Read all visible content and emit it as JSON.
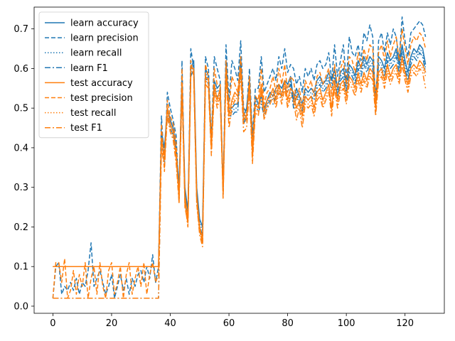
{
  "chart_data": {
    "type": "line",
    "title": "",
    "xlabel": "",
    "ylabel": "",
    "xlim": [
      -6.4,
      133.4
    ],
    "ylim": [
      -0.018,
      0.755
    ],
    "xticks": [
      0,
      20,
      40,
      60,
      80,
      100,
      120
    ],
    "yticks": [
      0.0,
      0.1,
      0.2,
      0.3,
      0.4,
      0.5,
      0.6,
      0.7
    ],
    "grid": false,
    "legend_position": "top-left",
    "colors": {
      "learn": "#1f77b4",
      "test": "#ff7f0e"
    },
    "x": [
      0,
      1,
      2,
      3,
      4,
      5,
      6,
      7,
      8,
      9,
      10,
      11,
      12,
      13,
      14,
      15,
      16,
      17,
      18,
      19,
      20,
      21,
      22,
      23,
      24,
      25,
      26,
      27,
      28,
      29,
      30,
      31,
      32,
      33,
      34,
      35,
      36,
      37,
      38,
      39,
      40,
      41,
      42,
      43,
      44,
      45,
      46,
      47,
      48,
      49,
      50,
      51,
      52,
      53,
      54,
      55,
      56,
      57,
      58,
      59,
      60,
      61,
      62,
      63,
      64,
      65,
      66,
      67,
      68,
      69,
      70,
      71,
      72,
      73,
      74,
      75,
      76,
      77,
      78,
      79,
      80,
      81,
      82,
      83,
      84,
      85,
      86,
      87,
      88,
      89,
      90,
      91,
      92,
      93,
      94,
      95,
      96,
      97,
      98,
      99,
      100,
      101,
      102,
      103,
      104,
      105,
      106,
      107,
      108,
      109,
      110,
      111,
      112,
      113,
      114,
      115,
      116,
      117,
      118,
      119,
      120,
      121,
      122,
      123,
      124,
      125,
      126,
      127
    ],
    "series": [
      {
        "name": "learn accuracy",
        "color": "#1f77b4",
        "dash": "solid",
        "values": [
          0.1,
          0.1,
          0.1,
          0.1,
          0.1,
          0.1,
          0.1,
          0.1,
          0.1,
          0.1,
          0.1,
          0.1,
          0.1,
          0.1,
          0.1,
          0.1,
          0.1,
          0.1,
          0.1,
          0.1,
          0.1,
          0.1,
          0.1,
          0.1,
          0.1,
          0.1,
          0.1,
          0.1,
          0.1,
          0.1,
          0.1,
          0.1,
          0.1,
          0.1,
          0.1,
          0.1,
          0.1,
          0.44,
          0.4,
          0.5,
          0.47,
          0.45,
          0.4,
          0.3,
          0.58,
          0.3,
          0.24,
          0.6,
          0.62,
          0.3,
          0.22,
          0.2,
          0.6,
          0.58,
          0.42,
          0.57,
          0.55,
          0.56,
          0.3,
          0.62,
          0.5,
          0.5,
          0.51,
          0.51,
          0.63,
          0.48,
          0.5,
          0.57,
          0.42,
          0.53,
          0.51,
          0.53,
          0.5,
          0.52,
          0.54,
          0.53,
          0.55,
          0.56,
          0.55,
          0.57,
          0.56,
          0.58,
          0.52,
          0.55,
          0.53,
          0.51,
          0.55,
          0.54,
          0.55,
          0.54,
          0.57,
          0.58,
          0.56,
          0.57,
          0.59,
          0.57,
          0.6,
          0.55,
          0.59,
          0.6,
          0.56,
          0.61,
          0.6,
          0.58,
          0.62,
          0.6,
          0.63,
          0.61,
          0.63,
          0.62,
          0.53,
          0.63,
          0.62,
          0.6,
          0.64,
          0.62,
          0.63,
          0.65,
          0.61,
          0.66,
          0.62,
          0.59,
          0.63,
          0.65,
          0.64,
          0.66,
          0.65,
          0.61
        ]
      },
      {
        "name": "learn precision",
        "color": "#1f77b4",
        "dash": "dashed",
        "values": [
          0.02,
          0.1,
          0.11,
          0.03,
          0.05,
          0.04,
          0.06,
          0.04,
          0.07,
          0.03,
          0.06,
          0.05,
          0.09,
          0.16,
          0.05,
          0.07,
          0.09,
          0.06,
          0.03,
          0.05,
          0.08,
          0.02,
          0.05,
          0.08,
          0.04,
          0.07,
          0.03,
          0.07,
          0.05,
          0.08,
          0.09,
          0.06,
          0.1,
          0.07,
          0.13,
          0.06,
          0.1,
          0.48,
          0.35,
          0.54,
          0.5,
          0.47,
          0.43,
          0.27,
          0.62,
          0.26,
          0.22,
          0.65,
          0.6,
          0.27,
          0.2,
          0.16,
          0.63,
          0.6,
          0.42,
          0.63,
          0.6,
          0.57,
          0.29,
          0.66,
          0.52,
          0.62,
          0.6,
          0.57,
          0.67,
          0.5,
          0.49,
          0.6,
          0.43,
          0.55,
          0.55,
          0.63,
          0.54,
          0.56,
          0.58,
          0.6,
          0.57,
          0.63,
          0.6,
          0.65,
          0.59,
          0.61,
          0.6,
          0.56,
          0.58,
          0.54,
          0.6,
          0.58,
          0.6,
          0.57,
          0.61,
          0.62,
          0.6,
          0.61,
          0.64,
          0.57,
          0.66,
          0.58,
          0.62,
          0.66,
          0.57,
          0.68,
          0.64,
          0.63,
          0.66,
          0.62,
          0.69,
          0.67,
          0.71,
          0.68,
          0.49,
          0.67,
          0.69,
          0.64,
          0.69,
          0.66,
          0.7,
          0.68,
          0.62,
          0.73,
          0.67,
          0.63,
          0.69,
          0.7,
          0.71,
          0.72,
          0.71,
          0.68
        ]
      },
      {
        "name": "learn recall",
        "color": "#1f77b4",
        "dash": "dotted",
        "values": [
          0.1,
          0.1,
          0.1,
          0.1,
          0.1,
          0.1,
          0.1,
          0.1,
          0.1,
          0.1,
          0.1,
          0.1,
          0.1,
          0.1,
          0.1,
          0.1,
          0.1,
          0.1,
          0.1,
          0.1,
          0.1,
          0.1,
          0.1,
          0.1,
          0.1,
          0.1,
          0.1,
          0.1,
          0.1,
          0.1,
          0.1,
          0.1,
          0.1,
          0.1,
          0.1,
          0.1,
          0.1,
          0.43,
          0.39,
          0.49,
          0.46,
          0.44,
          0.39,
          0.29,
          0.57,
          0.29,
          0.23,
          0.59,
          0.61,
          0.29,
          0.21,
          0.19,
          0.59,
          0.57,
          0.41,
          0.56,
          0.54,
          0.55,
          0.29,
          0.61,
          0.49,
          0.49,
          0.5,
          0.5,
          0.62,
          0.47,
          0.49,
          0.56,
          0.41,
          0.52,
          0.5,
          0.52,
          0.49,
          0.51,
          0.53,
          0.52,
          0.54,
          0.55,
          0.54,
          0.56,
          0.55,
          0.57,
          0.51,
          0.54,
          0.52,
          0.5,
          0.54,
          0.53,
          0.54,
          0.53,
          0.56,
          0.57,
          0.55,
          0.56,
          0.58,
          0.56,
          0.59,
          0.54,
          0.58,
          0.59,
          0.55,
          0.6,
          0.59,
          0.57,
          0.61,
          0.59,
          0.62,
          0.6,
          0.62,
          0.61,
          0.52,
          0.62,
          0.61,
          0.59,
          0.63,
          0.61,
          0.62,
          0.64,
          0.6,
          0.65,
          0.61,
          0.58,
          0.62,
          0.64,
          0.63,
          0.65,
          0.64,
          0.6
        ]
      },
      {
        "name": "learn F1",
        "color": "#1f77b4",
        "dash": "dashdot",
        "values": [
          0.02,
          0.02,
          0.02,
          0.02,
          0.02,
          0.02,
          0.02,
          0.02,
          0.02,
          0.02,
          0.02,
          0.02,
          0.02,
          0.02,
          0.02,
          0.02,
          0.02,
          0.02,
          0.02,
          0.02,
          0.02,
          0.02,
          0.02,
          0.02,
          0.02,
          0.02,
          0.02,
          0.02,
          0.02,
          0.02,
          0.02,
          0.02,
          0.02,
          0.02,
          0.02,
          0.02,
          0.02,
          0.42,
          0.37,
          0.48,
          0.45,
          0.43,
          0.38,
          0.28,
          0.56,
          0.28,
          0.22,
          0.58,
          0.6,
          0.28,
          0.2,
          0.18,
          0.58,
          0.56,
          0.4,
          0.55,
          0.53,
          0.54,
          0.28,
          0.6,
          0.48,
          0.48,
          0.49,
          0.49,
          0.61,
          0.46,
          0.48,
          0.55,
          0.4,
          0.51,
          0.49,
          0.51,
          0.48,
          0.5,
          0.52,
          0.51,
          0.53,
          0.54,
          0.53,
          0.55,
          0.54,
          0.56,
          0.5,
          0.53,
          0.51,
          0.49,
          0.53,
          0.52,
          0.53,
          0.52,
          0.55,
          0.56,
          0.54,
          0.55,
          0.57,
          0.55,
          0.58,
          0.53,
          0.57,
          0.58,
          0.54,
          0.59,
          0.58,
          0.56,
          0.6,
          0.58,
          0.61,
          0.59,
          0.61,
          0.6,
          0.51,
          0.61,
          0.6,
          0.58,
          0.62,
          0.6,
          0.61,
          0.63,
          0.59,
          0.64,
          0.6,
          0.57,
          0.61,
          0.63,
          0.62,
          0.64,
          0.63,
          0.59
        ]
      },
      {
        "name": "test accuracy",
        "color": "#ff7f0e",
        "dash": "solid",
        "values": [
          0.1,
          0.1,
          0.1,
          0.1,
          0.1,
          0.1,
          0.1,
          0.1,
          0.1,
          0.1,
          0.1,
          0.1,
          0.1,
          0.1,
          0.1,
          0.1,
          0.1,
          0.1,
          0.1,
          0.1,
          0.1,
          0.1,
          0.1,
          0.1,
          0.1,
          0.1,
          0.1,
          0.1,
          0.1,
          0.1,
          0.1,
          0.1,
          0.1,
          0.1,
          0.1,
          0.1,
          0.1,
          0.42,
          0.38,
          0.5,
          0.46,
          0.44,
          0.38,
          0.28,
          0.56,
          0.28,
          0.22,
          0.6,
          0.6,
          0.28,
          0.2,
          0.17,
          0.58,
          0.57,
          0.4,
          0.56,
          0.52,
          0.55,
          0.29,
          0.6,
          0.48,
          0.52,
          0.54,
          0.53,
          0.6,
          0.47,
          0.48,
          0.56,
          0.38,
          0.51,
          0.5,
          0.56,
          0.49,
          0.52,
          0.53,
          0.55,
          0.52,
          0.56,
          0.53,
          0.57,
          0.52,
          0.55,
          0.54,
          0.5,
          0.52,
          0.48,
          0.53,
          0.52,
          0.53,
          0.5,
          0.54,
          0.55,
          0.52,
          0.54,
          0.56,
          0.5,
          0.57,
          0.52,
          0.56,
          0.57,
          0.53,
          0.58,
          0.57,
          0.55,
          0.59,
          0.56,
          0.59,
          0.57,
          0.6,
          0.59,
          0.5,
          0.59,
          0.6,
          0.57,
          0.61,
          0.58,
          0.6,
          0.61,
          0.58,
          0.63,
          0.59,
          0.56,
          0.6,
          0.61,
          0.6,
          0.62,
          0.61,
          0.59
        ]
      },
      {
        "name": "test precision",
        "color": "#ff7f0e",
        "dash": "dashed",
        "values": [
          0.02,
          0.11,
          0.11,
          0.06,
          0.12,
          0.02,
          0.04,
          0.09,
          0.03,
          0.08,
          0.05,
          0.11,
          0.02,
          0.07,
          0.1,
          0.03,
          0.11,
          0.05,
          0.02,
          0.09,
          0.11,
          0.03,
          0.06,
          0.1,
          0.02,
          0.08,
          0.11,
          0.03,
          0.07,
          0.1,
          0.05,
          0.11,
          0.03,
          0.08,
          0.11,
          0.06,
          0.08,
          0.46,
          0.34,
          0.52,
          0.48,
          0.46,
          0.41,
          0.26,
          0.6,
          0.25,
          0.21,
          0.62,
          0.58,
          0.26,
          0.19,
          0.16,
          0.61,
          0.58,
          0.41,
          0.6,
          0.56,
          0.56,
          0.28,
          0.62,
          0.5,
          0.58,
          0.56,
          0.54,
          0.63,
          0.49,
          0.47,
          0.58,
          0.41,
          0.53,
          0.52,
          0.6,
          0.51,
          0.54,
          0.55,
          0.58,
          0.54,
          0.6,
          0.56,
          0.61,
          0.54,
          0.58,
          0.57,
          0.52,
          0.55,
          0.5,
          0.57,
          0.55,
          0.57,
          0.53,
          0.58,
          0.59,
          0.56,
          0.58,
          0.6,
          0.53,
          0.61,
          0.55,
          0.6,
          0.62,
          0.56,
          0.63,
          0.62,
          0.59,
          0.64,
          0.6,
          0.65,
          0.62,
          0.66,
          0.65,
          0.52,
          0.64,
          0.66,
          0.62,
          0.67,
          0.63,
          0.66,
          0.68,
          0.62,
          0.7,
          0.65,
          0.61,
          0.66,
          0.68,
          0.67,
          0.69,
          0.68,
          0.65
        ]
      },
      {
        "name": "test recall",
        "color": "#ff7f0e",
        "dash": "dotted",
        "values": [
          0.1,
          0.1,
          0.1,
          0.1,
          0.1,
          0.1,
          0.1,
          0.1,
          0.1,
          0.1,
          0.1,
          0.1,
          0.1,
          0.1,
          0.1,
          0.1,
          0.1,
          0.1,
          0.1,
          0.1,
          0.1,
          0.1,
          0.1,
          0.1,
          0.1,
          0.1,
          0.1,
          0.1,
          0.1,
          0.1,
          0.1,
          0.1,
          0.1,
          0.1,
          0.1,
          0.1,
          0.1,
          0.41,
          0.37,
          0.49,
          0.45,
          0.43,
          0.37,
          0.27,
          0.55,
          0.27,
          0.21,
          0.59,
          0.59,
          0.27,
          0.19,
          0.16,
          0.57,
          0.56,
          0.39,
          0.55,
          0.51,
          0.54,
          0.28,
          0.59,
          0.47,
          0.51,
          0.53,
          0.52,
          0.59,
          0.46,
          0.47,
          0.55,
          0.37,
          0.5,
          0.49,
          0.55,
          0.48,
          0.51,
          0.52,
          0.54,
          0.51,
          0.55,
          0.52,
          0.56,
          0.51,
          0.54,
          0.53,
          0.49,
          0.51,
          0.47,
          0.52,
          0.51,
          0.52,
          0.49,
          0.53,
          0.54,
          0.51,
          0.53,
          0.55,
          0.49,
          0.56,
          0.51,
          0.55,
          0.56,
          0.52,
          0.57,
          0.56,
          0.54,
          0.58,
          0.55,
          0.58,
          0.56,
          0.59,
          0.58,
          0.49,
          0.58,
          0.59,
          0.56,
          0.6,
          0.57,
          0.59,
          0.6,
          0.57,
          0.62,
          0.58,
          0.55,
          0.59,
          0.6,
          0.59,
          0.61,
          0.6,
          0.58
        ]
      },
      {
        "name": "test F1",
        "color": "#ff7f0e",
        "dash": "dashdot",
        "values": [
          0.02,
          0.02,
          0.02,
          0.02,
          0.02,
          0.02,
          0.02,
          0.02,
          0.02,
          0.02,
          0.02,
          0.02,
          0.02,
          0.02,
          0.02,
          0.02,
          0.02,
          0.02,
          0.02,
          0.02,
          0.02,
          0.02,
          0.02,
          0.02,
          0.02,
          0.02,
          0.02,
          0.02,
          0.02,
          0.02,
          0.02,
          0.02,
          0.02,
          0.02,
          0.02,
          0.02,
          0.02,
          0.4,
          0.35,
          0.48,
          0.44,
          0.42,
          0.36,
          0.26,
          0.54,
          0.26,
          0.2,
          0.58,
          0.58,
          0.26,
          0.18,
          0.15,
          0.56,
          0.55,
          0.38,
          0.54,
          0.5,
          0.53,
          0.27,
          0.58,
          0.45,
          0.5,
          0.52,
          0.51,
          0.58,
          0.44,
          0.45,
          0.54,
          0.36,
          0.49,
          0.48,
          0.54,
          0.47,
          0.5,
          0.51,
          0.53,
          0.5,
          0.54,
          0.51,
          0.55,
          0.5,
          0.53,
          0.52,
          0.47,
          0.5,
          0.45,
          0.51,
          0.5,
          0.51,
          0.48,
          0.52,
          0.53,
          0.5,
          0.52,
          0.54,
          0.48,
          0.55,
          0.5,
          0.54,
          0.55,
          0.51,
          0.56,
          0.55,
          0.53,
          0.57,
          0.54,
          0.57,
          0.55,
          0.58,
          0.57,
          0.48,
          0.57,
          0.58,
          0.55,
          0.59,
          0.56,
          0.58,
          0.59,
          0.56,
          0.61,
          0.57,
          0.54,
          0.58,
          0.59,
          0.58,
          0.6,
          0.59,
          0.55
        ]
      }
    ]
  }
}
